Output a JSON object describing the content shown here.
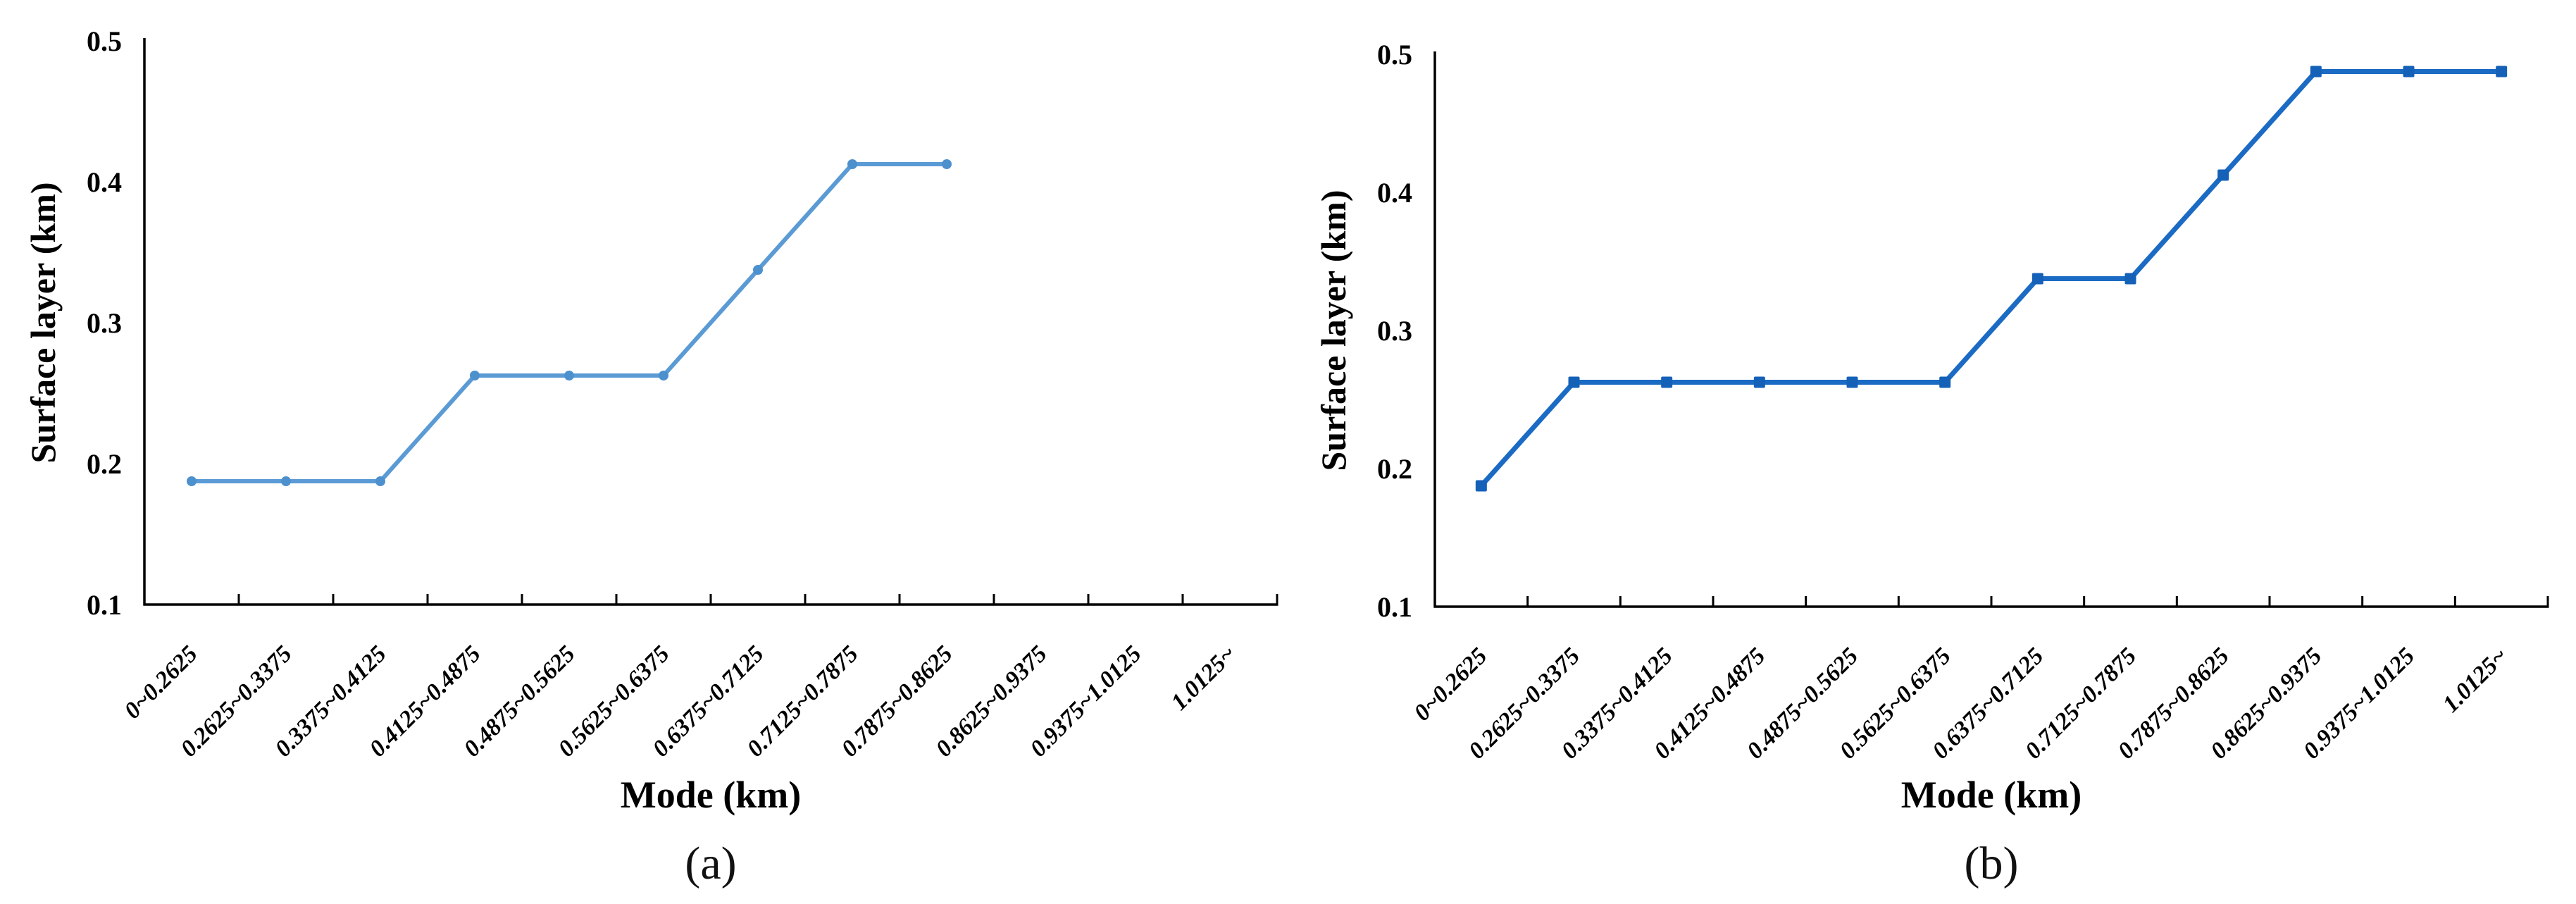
{
  "figure": {
    "background": "#ffffff",
    "captions": {
      "a": "(a)",
      "b": "(b)"
    }
  },
  "chart_data": [
    {
      "id": "a",
      "type": "line",
      "caption": "(a)",
      "xlabel": "Mode (km)",
      "ylabel": "Surface layer (km)",
      "ylim": [
        0.1,
        0.5
      ],
      "yticks": [
        0.1,
        0.2,
        0.3,
        0.4,
        0.5
      ],
      "ytick_labels": [
        "0.1",
        "0.2",
        "0.3",
        "0.4",
        "0.5"
      ],
      "grid": false,
      "legend": false,
      "categories": [
        "0~0.2625",
        "0.2625~0.3375",
        "0.3375~0.4125",
        "0.4125~0.4875",
        "0.4875~0.5625",
        "0.5625~0.6375",
        "0.6375~0.7125",
        "0.7125~0.7875",
        "0.7875~0.8625",
        "0.8625~0.9375",
        "0.9375~1.0125",
        "1.0125~"
      ],
      "series": [
        {
          "name": "Surface layer",
          "color": "#5B9BD5",
          "marker_color": "#4D90CE",
          "marker": "circle",
          "values": [
            0.1875,
            0.1875,
            0.1875,
            0.2625,
            0.2625,
            0.2625,
            0.3375,
            0.4125,
            0.4125,
            null,
            null,
            null
          ]
        }
      ]
    },
    {
      "id": "b",
      "type": "line",
      "caption": "(b)",
      "xlabel": "Mode (km)",
      "ylabel": "Surface layer (km)",
      "ylim": [
        0.1,
        0.5
      ],
      "yticks": [
        0.1,
        0.2,
        0.3,
        0.4,
        0.5
      ],
      "ytick_labels": [
        "0.1",
        "0.2",
        "0.3",
        "0.4",
        "0.5"
      ],
      "grid": false,
      "legend": false,
      "categories": [
        "0~0.2625",
        "0.2625~0.3375",
        "0.3375~0.4125",
        "0.4125~0.4875",
        "0.4875~0.5625",
        "0.5625~0.6375",
        "0.6375~0.7125",
        "0.7125~0.7875",
        "0.7875~0.8625",
        "0.8625~0.9375",
        "0.9375~1.0125",
        "1.0125~"
      ],
      "series": [
        {
          "name": "Surface layer",
          "color": "#1B6BC4",
          "marker_color": "#1561B8",
          "marker": "square",
          "values": [
            0.1875,
            0.2625,
            0.2625,
            0.2625,
            0.2625,
            0.2625,
            0.3375,
            0.3375,
            0.4125,
            0.4875,
            0.4875,
            0.4875
          ]
        }
      ]
    }
  ]
}
